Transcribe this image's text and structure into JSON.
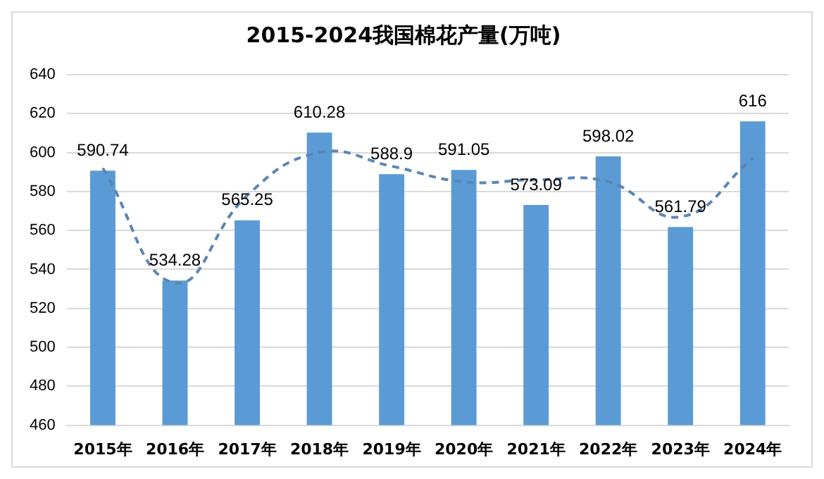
{
  "chart_data": {
    "type": "bar",
    "title": "2015-2024我国棉花产量(万吨)",
    "categories": [
      "2015年",
      "2016年",
      "2017年",
      "2018年",
      "2019年",
      "2020年",
      "2021年",
      "2022年",
      "2023年",
      "2024年"
    ],
    "series": [
      {
        "color": "#5b9bd5",
        "values": [
          590.74,
          534.28,
          565.25,
          610.28,
          588.9,
          591.05,
          573.09,
          598.02,
          561.79,
          616
        ],
        "value_labels": [
          "590.74",
          "534.28",
          "565.25",
          "610.28",
          "588.9",
          "591.05",
          "573.09",
          "598.02",
          "561.79",
          "616"
        ]
      },
      {
        "type": "line",
        "color": "#5a86b4",
        "line_style": "dashed",
        "marker": "none",
        "values": [
          592,
          533,
          578,
          600,
          593,
          585,
          586,
          585,
          567,
          597
        ]
      }
    ],
    "ylim": [
      460,
      640
    ],
    "yticks": [
      460,
      480,
      500,
      520,
      540,
      560,
      580,
      600,
      620,
      640
    ],
    "grid": "y",
    "legend": false
  }
}
